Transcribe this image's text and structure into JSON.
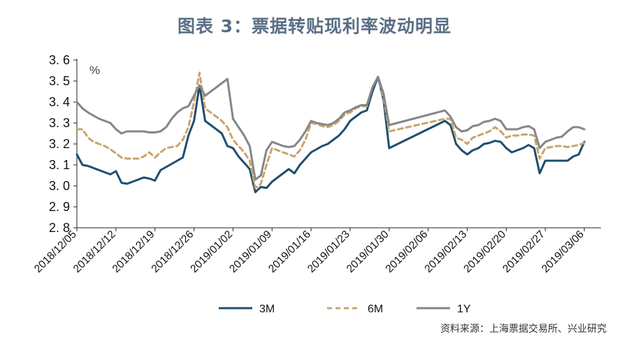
{
  "title": "图表 3：票据转贴现利率波动明显",
  "source": "资料来源：上海票据交易所、兴业研究",
  "chart_data": {
    "type": "line",
    "unit_label": "%",
    "ylim": [
      2.8,
      3.6
    ],
    "y_ticks": [
      "3. 6",
      "3. 5",
      "3. 4",
      "3. 3",
      "3. 2",
      "3. 1",
      "3. 0",
      "2. 9",
      "2. 8"
    ],
    "y_tick_values": [
      3.6,
      3.5,
      3.4,
      3.3,
      3.2,
      3.1,
      3.0,
      2.9,
      2.8
    ],
    "x_ticks": [
      "2018/12/05",
      "2018/12/12",
      "2018/12/19",
      "2018/12/26",
      "2019/01/02",
      "2019/01/09",
      "2019/01/16",
      "2019/01/23",
      "2019/01/30",
      "2019/02/06",
      "2019/02/13",
      "2019/02/20",
      "2019/02/27",
      "2019/03/06"
    ],
    "x_range_days": [
      0,
      94
    ],
    "legend_position": "bottom",
    "grid": false,
    "series": [
      {
        "name": "3M",
        "color": "#1f4e6e",
        "dash": "solid",
        "points": [
          [
            0,
            3.15
          ],
          [
            1,
            3.1
          ],
          [
            2,
            3.095
          ],
          [
            3,
            3.085
          ],
          [
            4,
            3.075
          ],
          [
            5,
            3.065
          ],
          [
            6,
            3.055
          ],
          [
            7,
            3.07
          ],
          [
            8,
            3.015
          ],
          [
            9,
            3.01
          ],
          [
            10,
            3.02
          ],
          [
            11,
            3.03
          ],
          [
            12,
            3.04
          ],
          [
            13,
            3.035
          ],
          [
            14,
            3.025
          ],
          [
            15,
            3.075
          ],
          [
            16,
            3.09
          ],
          [
            17,
            3.105
          ],
          [
            18,
            3.12
          ],
          [
            19,
            3.135
          ],
          [
            20,
            3.24
          ],
          [
            21,
            3.31
          ],
          [
            22,
            3.48
          ],
          [
            23,
            3.31
          ],
          [
            24,
            3.29
          ],
          [
            25,
            3.27
          ],
          [
            26,
            3.25
          ],
          [
            27,
            3.19
          ],
          [
            28,
            3.18
          ],
          [
            29,
            3.14
          ],
          [
            30,
            3.11
          ],
          [
            31,
            3.08
          ],
          [
            32,
            2.97
          ],
          [
            33,
            2.995
          ],
          [
            34,
            2.99
          ],
          [
            35,
            3.02
          ],
          [
            36,
            3.04
          ],
          [
            37,
            3.06
          ],
          [
            38,
            3.08
          ],
          [
            39,
            3.06
          ],
          [
            40,
            3.1
          ],
          [
            41,
            3.13
          ],
          [
            42,
            3.16
          ],
          [
            43,
            3.175
          ],
          [
            44,
            3.19
          ],
          [
            45,
            3.2
          ],
          [
            46,
            3.22
          ],
          [
            47,
            3.24
          ],
          [
            48,
            3.27
          ],
          [
            49,
            3.31
          ],
          [
            50,
            3.33
          ],
          [
            51,
            3.35
          ],
          [
            52,
            3.36
          ],
          [
            53,
            3.45
          ],
          [
            54,
            3.52
          ],
          [
            55,
            3.41
          ],
          [
            56,
            3.18
          ],
          [
            66,
            3.31
          ],
          [
            67,
            3.29
          ],
          [
            68,
            3.2
          ],
          [
            69,
            3.17
          ],
          [
            70,
            3.15
          ],
          [
            71,
            3.17
          ],
          [
            72,
            3.18
          ],
          [
            73,
            3.2
          ],
          [
            74,
            3.205
          ],
          [
            75,
            3.215
          ],
          [
            76,
            3.21
          ],
          [
            77,
            3.18
          ],
          [
            78,
            3.16
          ],
          [
            79,
            3.17
          ],
          [
            80,
            3.18
          ],
          [
            81,
            3.195
          ],
          [
            82,
            3.18
          ],
          [
            83,
            3.06
          ],
          [
            84,
            3.12
          ],
          [
            85,
            3.12
          ],
          [
            86,
            3.12
          ],
          [
            87,
            3.12
          ],
          [
            88,
            3.12
          ],
          [
            89,
            3.14
          ],
          [
            90,
            3.15
          ],
          [
            91,
            3.21
          ]
        ]
      },
      {
        "name": "6M",
        "color": "#c9a46e",
        "dash": "dashed",
        "points": [
          [
            0,
            3.27
          ],
          [
            1,
            3.27
          ],
          [
            2,
            3.23
          ],
          [
            3,
            3.21
          ],
          [
            4,
            3.2
          ],
          [
            5,
            3.19
          ],
          [
            6,
            3.175
          ],
          [
            7,
            3.155
          ],
          [
            8,
            3.135
          ],
          [
            9,
            3.13
          ],
          [
            10,
            3.13
          ],
          [
            11,
            3.13
          ],
          [
            12,
            3.14
          ],
          [
            13,
            3.16
          ],
          [
            14,
            3.135
          ],
          [
            15,
            3.16
          ],
          [
            16,
            3.18
          ],
          [
            17,
            3.185
          ],
          [
            18,
            3.19
          ],
          [
            19,
            3.22
          ],
          [
            20,
            3.28
          ],
          [
            21,
            3.4
          ],
          [
            22,
            3.54
          ],
          [
            23,
            3.37
          ],
          [
            24,
            3.35
          ],
          [
            25,
            3.33
          ],
          [
            26,
            3.31
          ],
          [
            27,
            3.28
          ],
          [
            28,
            3.22
          ],
          [
            29,
            3.19
          ],
          [
            30,
            3.16
          ],
          [
            31,
            3.12
          ],
          [
            32,
            2.99
          ],
          [
            33,
            3.01
          ],
          [
            34,
            3.1
          ],
          [
            35,
            3.18
          ],
          [
            36,
            3.17
          ],
          [
            37,
            3.16
          ],
          [
            38,
            3.15
          ],
          [
            39,
            3.14
          ],
          [
            40,
            3.17
          ],
          [
            41,
            3.22
          ],
          [
            42,
            3.3
          ],
          [
            43,
            3.295
          ],
          [
            44,
            3.285
          ],
          [
            45,
            3.28
          ],
          [
            46,
            3.29
          ],
          [
            47,
            3.31
          ],
          [
            48,
            3.34
          ],
          [
            49,
            3.35
          ],
          [
            50,
            3.37
          ],
          [
            51,
            3.38
          ],
          [
            52,
            3.38
          ],
          [
            53,
            3.47
          ],
          [
            54,
            3.52
          ],
          [
            55,
            3.42
          ],
          [
            56,
            3.26
          ],
          [
            66,
            3.32
          ],
          [
            67,
            3.32
          ],
          [
            68,
            3.23
          ],
          [
            69,
            3.22
          ],
          [
            70,
            3.2
          ],
          [
            71,
            3.23
          ],
          [
            72,
            3.24
          ],
          [
            73,
            3.25
          ],
          [
            74,
            3.26
          ],
          [
            75,
            3.28
          ],
          [
            76,
            3.26
          ],
          [
            77,
            3.23
          ],
          [
            78,
            3.24
          ],
          [
            79,
            3.24
          ],
          [
            80,
            3.245
          ],
          [
            81,
            3.245
          ],
          [
            82,
            3.24
          ],
          [
            83,
            3.13
          ],
          [
            84,
            3.18
          ],
          [
            85,
            3.185
          ],
          [
            86,
            3.19
          ],
          [
            87,
            3.19
          ],
          [
            88,
            3.185
          ],
          [
            89,
            3.19
          ],
          [
            90,
            3.195
          ],
          [
            91,
            3.205
          ]
        ]
      },
      {
        "name": "1Y",
        "color": "#868686",
        "dash": "solid",
        "points": [
          [
            0,
            3.4
          ],
          [
            1,
            3.37
          ],
          [
            2,
            3.35
          ],
          [
            3,
            3.335
          ],
          [
            4,
            3.32
          ],
          [
            5,
            3.31
          ],
          [
            6,
            3.3
          ],
          [
            7,
            3.27
          ],
          [
            8,
            3.25
          ],
          [
            9,
            3.26
          ],
          [
            10,
            3.26
          ],
          [
            11,
            3.26
          ],
          [
            12,
            3.26
          ],
          [
            13,
            3.255
          ],
          [
            14,
            3.255
          ],
          [
            15,
            3.26
          ],
          [
            16,
            3.28
          ],
          [
            17,
            3.32
          ],
          [
            18,
            3.35
          ],
          [
            19,
            3.37
          ],
          [
            20,
            3.38
          ],
          [
            21,
            3.43
          ],
          [
            22,
            3.48
          ],
          [
            23,
            3.43
          ],
          [
            24,
            3.45
          ],
          [
            25,
            3.47
          ],
          [
            26,
            3.49
          ],
          [
            27,
            3.51
          ],
          [
            28,
            3.32
          ],
          [
            29,
            3.28
          ],
          [
            30,
            3.24
          ],
          [
            31,
            3.19
          ],
          [
            32,
            3.03
          ],
          [
            33,
            3.05
          ],
          [
            34,
            3.17
          ],
          [
            35,
            3.21
          ],
          [
            36,
            3.2
          ],
          [
            37,
            3.19
          ],
          [
            38,
            3.185
          ],
          [
            39,
            3.19
          ],
          [
            40,
            3.22
          ],
          [
            41,
            3.26
          ],
          [
            42,
            3.31
          ],
          [
            43,
            3.3
          ],
          [
            44,
            3.295
          ],
          [
            45,
            3.29
          ],
          [
            46,
            3.3
          ],
          [
            47,
            3.32
          ],
          [
            48,
            3.35
          ],
          [
            49,
            3.36
          ],
          [
            50,
            3.375
          ],
          [
            51,
            3.385
          ],
          [
            52,
            3.385
          ],
          [
            53,
            3.47
          ],
          [
            54,
            3.52
          ],
          [
            55,
            3.44
          ],
          [
            56,
            3.29
          ],
          [
            66,
            3.36
          ],
          [
            67,
            3.33
          ],
          [
            68,
            3.28
          ],
          [
            69,
            3.26
          ],
          [
            70,
            3.265
          ],
          [
            71,
            3.285
          ],
          [
            72,
            3.29
          ],
          [
            73,
            3.305
          ],
          [
            74,
            3.31
          ],
          [
            75,
            3.32
          ],
          [
            76,
            3.31
          ],
          [
            77,
            3.27
          ],
          [
            78,
            3.27
          ],
          [
            79,
            3.27
          ],
          [
            80,
            3.28
          ],
          [
            81,
            3.285
          ],
          [
            82,
            3.27
          ],
          [
            83,
            3.18
          ],
          [
            84,
            3.21
          ],
          [
            85,
            3.22
          ],
          [
            86,
            3.23
          ],
          [
            87,
            3.235
          ],
          [
            88,
            3.26
          ],
          [
            89,
            3.28
          ],
          [
            90,
            3.28
          ],
          [
            91,
            3.27
          ]
        ]
      }
    ]
  }
}
